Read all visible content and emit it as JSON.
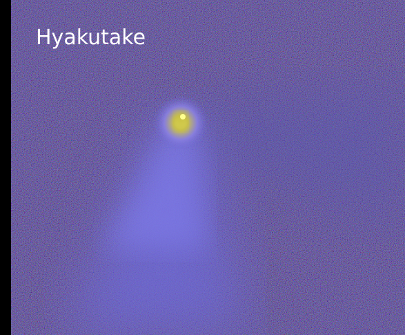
{
  "title": "Hyakutake"
}
